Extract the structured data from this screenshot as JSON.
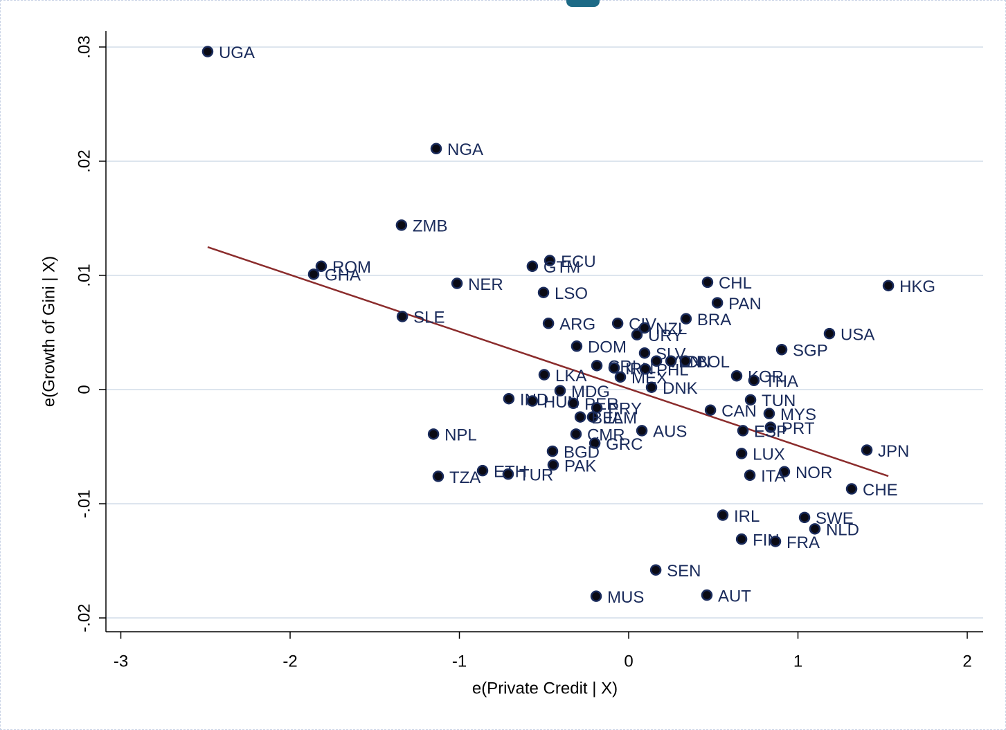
{
  "chart_data": {
    "type": "scatter",
    "xlabel": "e(Private Credit | X)",
    "ylabel": "e(Growth of Gini | X)",
    "xlim": [
      -3.088,
      2.094
    ],
    "ylim": [
      -0.02121,
      0.03139
    ],
    "xticks": [
      -3,
      -2,
      -1,
      0,
      1,
      2
    ],
    "yticks": [
      {
        "value": -0.02,
        "label": "-.02"
      },
      {
        "value": -0.01,
        "label": "-.01"
      },
      0,
      {
        "value": 0.01,
        "label": ".01"
      },
      {
        "value": 0.02,
        "label": ".02"
      },
      {
        "value": 0.03,
        "label": ".03"
      }
    ],
    "grid": true,
    "point_color": "#0a0a14",
    "point_edge": "#1a2b5b",
    "label_color": "#1a2b5b",
    "labels": [
      "UGA",
      "NGA",
      "ZMB",
      "ROM",
      "GHA",
      "NER",
      "ECU",
      "GTM",
      "LSO",
      "SLE",
      "CHL",
      "PAN",
      "HKG",
      "BRA",
      "ARG",
      "CIV",
      "NZL",
      "URY",
      "USA",
      "SGP",
      "DOM",
      "SLV",
      "CRI",
      "IRN",
      "PHL",
      "VEN",
      "IDN",
      "BOL",
      "MEX",
      "LKA",
      "KOR",
      "THA",
      "DNK",
      "MDG",
      "IND",
      "HUN",
      "PER",
      "PRY",
      "JAM",
      "BEL",
      "TUN",
      "CAN",
      "MYS",
      "PRT",
      "ESP",
      "NPL",
      "CMR",
      "AUS",
      "GRC",
      "BGD",
      "JPN",
      "LUX",
      "PAK",
      "ETH",
      "NOR",
      "TUR",
      "TZA",
      "ITA",
      "CHE",
      "IRL",
      "SWE",
      "NLD",
      "FIN",
      "FRA",
      "SEN",
      "MUS",
      "AUT"
    ],
    "x": [
      -2.487,
      -1.137,
      -1.342,
      -1.816,
      -1.861,
      -1.014,
      -0.466,
      -0.569,
      -0.503,
      -1.337,
      0.466,
      0.524,
      1.534,
      0.339,
      -0.474,
      -0.065,
      0.094,
      0.049,
      1.186,
      0.904,
      -0.307,
      0.094,
      -0.188,
      -0.086,
      0.098,
      0.164,
      0.25,
      0.335,
      -0.049,
      -0.499,
      0.638,
      0.74,
      0.135,
      -0.405,
      -0.708,
      -0.569,
      -0.327,
      -0.188,
      -0.213,
      -0.286,
      0.72,
      0.483,
      0.83,
      0.838,
      0.675,
      -1.153,
      -0.311,
      0.078,
      -0.2,
      -0.45,
      1.407,
      0.667,
      -0.446,
      -0.863,
      0.92,
      -0.712,
      -1.125,
      0.716,
      1.317,
      0.556,
      1.039,
      1.1,
      0.667,
      0.867,
      0.16,
      -0.192,
      0.462
    ],
    "y": [
      0.0296,
      0.0211,
      0.0144,
      0.0108,
      0.0101,
      0.0093,
      0.0113,
      0.0108,
      0.0085,
      0.0064,
      0.0094,
      0.0076,
      0.0091,
      0.0062,
      0.0058,
      0.0058,
      0.0054,
      0.0048,
      0.0049,
      0.0035,
      0.0038,
      0.0032,
      0.0021,
      0.0019,
      0.0018,
      0.0025,
      0.0025,
      0.0025,
      0.0011,
      0.0013,
      0.0012,
      0.0008,
      0.0002,
      -0.0001,
      -0.0008,
      -0.001,
      -0.0012,
      -0.0016,
      -0.0024,
      -0.0024,
      -0.0009,
      -0.0018,
      -0.0021,
      -0.0033,
      -0.0036,
      -0.0039,
      -0.0039,
      -0.0036,
      -0.0047,
      -0.0054,
      -0.0053,
      -0.0056,
      -0.0066,
      -0.0071,
      -0.0072,
      -0.0074,
      -0.0076,
      -0.0075,
      -0.0087,
      -0.011,
      -0.0112,
      -0.0122,
      -0.0131,
      -0.0133,
      -0.0158,
      -0.0181,
      -0.018
    ],
    "fit": {
      "color": "#8b2c2c",
      "x": [
        -2.487,
        1.534
      ],
      "y": [
        0.01248,
        -0.00758
      ]
    }
  }
}
